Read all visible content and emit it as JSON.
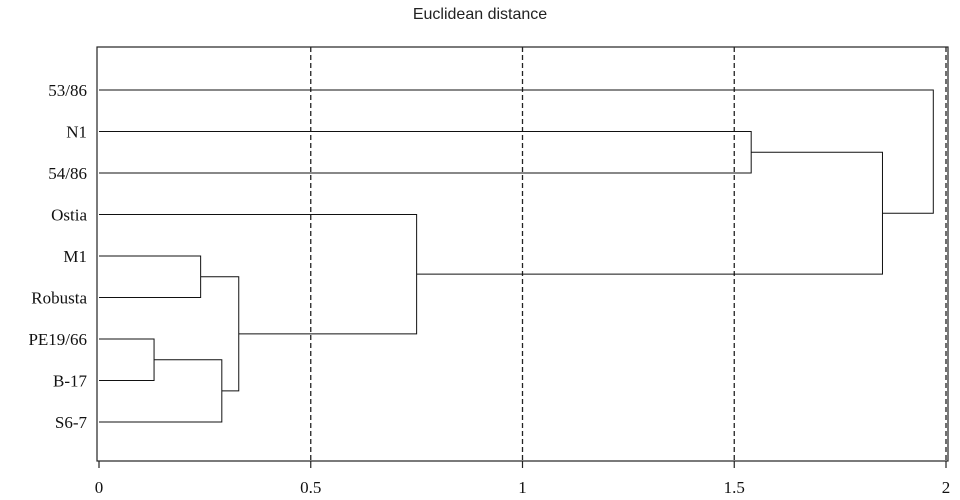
{
  "chart_data": {
    "type": "dendrogram",
    "title": "Euclidean distance",
    "xlabel": "",
    "ylabel": "",
    "xlim": [
      0,
      2
    ],
    "xticks": [
      0,
      0.5,
      1,
      1.5,
      2
    ],
    "xtick_labels": [
      "0",
      "0.5",
      "1",
      "1.5",
      "2"
    ],
    "grid": "vertical-dashed",
    "leaves": [
      "53/86",
      "N1",
      "54/86",
      "Ostia",
      "M1",
      "Robusta",
      "PE19/66",
      "B-17",
      "S6-7"
    ],
    "merges": [
      {
        "left": "PE19/66",
        "right": "B-17",
        "height": 0.13
      },
      {
        "left": "M1",
        "right": "Robusta",
        "height": 0.24
      },
      {
        "left": "PE19/66+B-17",
        "right": "S6-7",
        "height": 0.29
      },
      {
        "left": "M1+Robusta",
        "right": "PE19/66+B-17+S6-7",
        "height": 0.33
      },
      {
        "left": "Ostia",
        "right": "M1+Robusta+PE19/66+B-17+S6-7",
        "height": 0.75
      },
      {
        "left": "N1",
        "right": "54/86",
        "height": 1.54
      },
      {
        "left": "N1+54/86",
        "right": "Ostia+M1+Robusta+PE19/66+B-17+S6-7",
        "height": 1.85
      },
      {
        "left": "53/86",
        "right": "rest",
        "height": 1.97
      }
    ]
  }
}
